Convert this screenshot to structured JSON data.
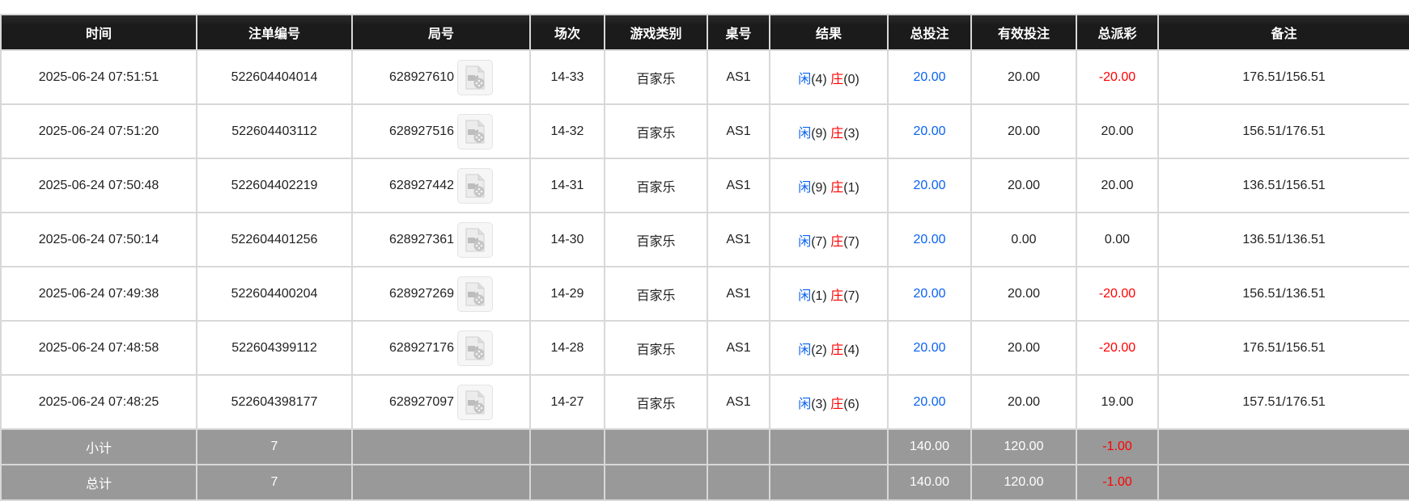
{
  "headers": [
    "时间",
    "注单编号",
    "局号",
    "场次",
    "游戏类别",
    "桌号",
    "结果",
    "总投注",
    "有效投注",
    "总派彩",
    "备注"
  ],
  "rows": [
    {
      "time": "2025-06-24 07:51:51",
      "bet_id": "522604404014",
      "round": "628927610",
      "shoe": "14-33",
      "game": "百家乐",
      "table": "AS1",
      "player_label": "闲",
      "player": "(4)",
      "banker_label": "庄",
      "banker": "(0)",
      "total_bet": "20.00",
      "valid_bet": "20.00",
      "payout": "-20.00",
      "payout_negative": true,
      "note": "176.51/156.51"
    },
    {
      "time": "2025-06-24 07:51:20",
      "bet_id": "522604403112",
      "round": "628927516",
      "shoe": "14-32",
      "game": "百家乐",
      "table": "AS1",
      "player_label": "闲",
      "player": "(9)",
      "banker_label": "庄",
      "banker": "(3)",
      "total_bet": "20.00",
      "valid_bet": "20.00",
      "payout": "20.00",
      "payout_negative": false,
      "note": "156.51/176.51"
    },
    {
      "time": "2025-06-24 07:50:48",
      "bet_id": "522604402219",
      "round": "628927442",
      "shoe": "14-31",
      "game": "百家乐",
      "table": "AS1",
      "player_label": "闲",
      "player": "(9)",
      "banker_label": "庄",
      "banker": "(1)",
      "total_bet": "20.00",
      "valid_bet": "20.00",
      "payout": "20.00",
      "payout_negative": false,
      "note": "136.51/156.51"
    },
    {
      "time": "2025-06-24 07:50:14",
      "bet_id": "522604401256",
      "round": "628927361",
      "shoe": "14-30",
      "game": "百家乐",
      "table": "AS1",
      "player_label": "闲",
      "player": "(7)",
      "banker_label": "庄",
      "banker": "(7)",
      "total_bet": "20.00",
      "valid_bet": "0.00",
      "payout": "0.00",
      "payout_negative": false,
      "note": "136.51/136.51"
    },
    {
      "time": "2025-06-24 07:49:38",
      "bet_id": "522604400204",
      "round": "628927269",
      "shoe": "14-29",
      "game": "百家乐",
      "table": "AS1",
      "player_label": "闲",
      "player": "(1)",
      "banker_label": "庄",
      "banker": "(7)",
      "total_bet": "20.00",
      "valid_bet": "20.00",
      "payout": "-20.00",
      "payout_negative": true,
      "note": "156.51/136.51"
    },
    {
      "time": "2025-06-24 07:48:58",
      "bet_id": "522604399112",
      "round": "628927176",
      "shoe": "14-28",
      "game": "百家乐",
      "table": "AS1",
      "player_label": "闲",
      "player": "(2)",
      "banker_label": "庄",
      "banker": "(4)",
      "total_bet": "20.00",
      "valid_bet": "20.00",
      "payout": "-20.00",
      "payout_negative": true,
      "note": "176.51/156.51"
    },
    {
      "time": "2025-06-24 07:48:25",
      "bet_id": "522604398177",
      "round": "628927097",
      "shoe": "14-27",
      "game": "百家乐",
      "table": "AS1",
      "player_label": "闲",
      "player": "(3)",
      "banker_label": "庄",
      "banker": "(6)",
      "total_bet": "20.00",
      "valid_bet": "20.00",
      "payout": "19.00",
      "payout_negative": false,
      "note": "157.51/176.51"
    }
  ],
  "subtotal": {
    "label": "小计",
    "count": "7",
    "total_bet": "140.00",
    "valid_bet": "120.00",
    "payout": "-1.00"
  },
  "grandtotal": {
    "label": "总计",
    "count": "7",
    "total_bet": "140.00",
    "valid_bet": "120.00",
    "payout": "-1.00"
  },
  "icons": {
    "replay": "video-file-icon"
  },
  "colors": {
    "header_bg": "#1b1b1b",
    "total_bet": "#0a62f0",
    "negative": "#ff0000",
    "player": "#0a62f0",
    "banker": "#ff0000",
    "footer_bg": "#999999"
  }
}
